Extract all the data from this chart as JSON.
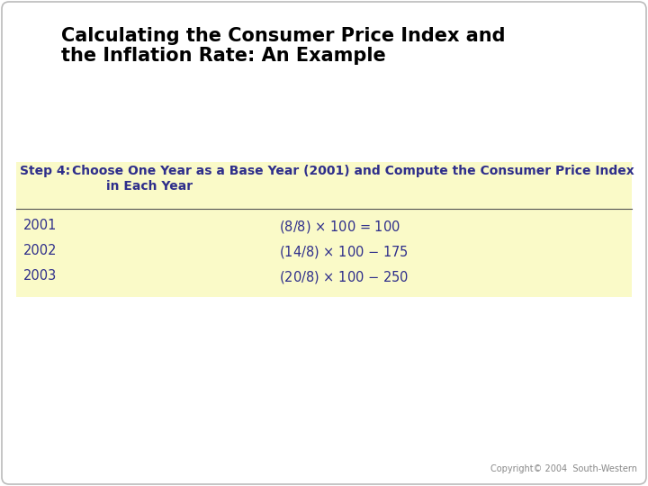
{
  "title_line1": "Calculating the Consumer Price Index and",
  "title_line2": "the Inflation Rate: An Example",
  "title_color": "#000000",
  "title_fontsize": 15,
  "title_bold": true,
  "step_label": "Step 4:",
  "step_line1": "Choose One Year as a Base Year (2001) and Compute the Consumer Price Index",
  "step_line2": "in Each Year",
  "step_color": "#2e2e8b",
  "step_fontsize": 10,
  "years": [
    "2001",
    "2002",
    "2003"
  ],
  "formulas": [
    "($8/$8) × 100 = 100",
    "($14/$8) × 100 − 175",
    "($20/$8) × 100 − 250"
  ],
  "data_color": "#2e2e8b",
  "data_fontsize": 10.5,
  "bg_color": "#ffffff",
  "box_color": "#fafac8",
  "outer_border_color": "#bbbbbb",
  "copyright": "Copyright© 2004  South-Western",
  "copyright_fontsize": 7,
  "copyright_color": "#888888"
}
